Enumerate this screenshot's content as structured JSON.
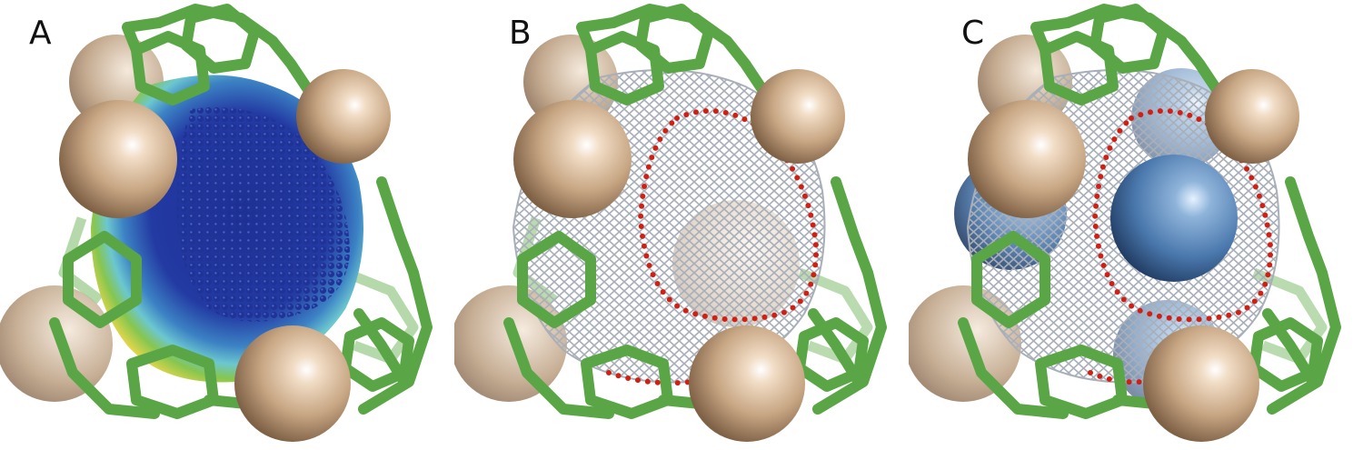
{
  "panels": [
    {
      "label": "A"
    },
    {
      "label": "B"
    },
    {
      "label": "C"
    }
  ],
  "colors": {
    "background": "#ffffff",
    "sphere_tan": "#d7b895",
    "sphere_tan_highlight": "#ffffff",
    "ligand_green": "#5aa646",
    "ligand_green_light": "#8bc97a",
    "cavity_blue_dark": "#1a2d8a",
    "cavity_blue": "#2f57b9",
    "cavity_cyan": "#5fc9d6",
    "cavity_green": "#7fc94f",
    "cavity_yellow": "#e5d94a",
    "mesh_gray": "#a7adb6",
    "dot_red": "#d11f14",
    "guest_blue": "#4a78ad",
    "guest_blue_light": "#8fb4da"
  }
}
